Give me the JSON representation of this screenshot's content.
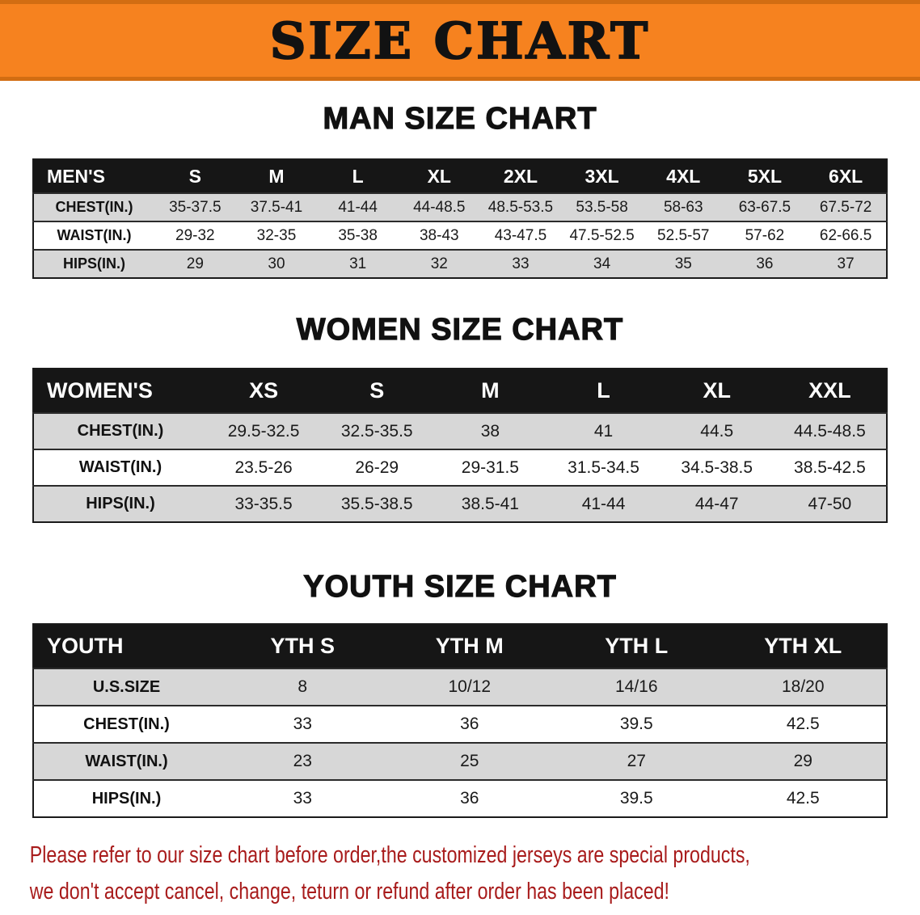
{
  "banner": {
    "title": "SIZE CHART"
  },
  "men": {
    "heading": "MAN SIZE CHART",
    "columns": [
      "MEN'S",
      "S",
      "M",
      "L",
      "XL",
      "2XL",
      "3XL",
      "4XL",
      "5XL",
      "6XL"
    ],
    "rows": [
      {
        "label": "CHEST(IN.)",
        "values": [
          "35-37.5",
          "37.5-41",
          "41-44",
          "44-48.5",
          "48.5-53.5",
          "53.5-58",
          "58-63",
          "63-67.5",
          "67.5-72"
        ]
      },
      {
        "label": "WAIST(IN.)",
        "values": [
          "29-32",
          "32-35",
          "35-38",
          "38-43",
          "43-47.5",
          "47.5-52.5",
          "52.5-57",
          "57-62",
          "62-66.5"
        ]
      },
      {
        "label": "HIPS(IN.)",
        "values": [
          "29",
          "30",
          "31",
          "32",
          "33",
          "34",
          "35",
          "36",
          "37"
        ]
      }
    ]
  },
  "women": {
    "heading": "WOMEN SIZE CHART",
    "columns": [
      "WOMEN'S",
      "XS",
      "S",
      "M",
      "L",
      "XL",
      "XXL"
    ],
    "rows": [
      {
        "label": "CHEST(IN.)",
        "values": [
          "29.5-32.5",
          "32.5-35.5",
          "38",
          "41",
          "44.5",
          "44.5-48.5"
        ]
      },
      {
        "label": "WAIST(IN.)",
        "values": [
          "23.5-26",
          "26-29",
          "29-31.5",
          "31.5-34.5",
          "34.5-38.5",
          "38.5-42.5"
        ]
      },
      {
        "label": "HIPS(IN.)",
        "values": [
          "33-35.5",
          "35.5-38.5",
          "38.5-41",
          "41-44",
          "44-47",
          "47-50"
        ]
      }
    ]
  },
  "youth": {
    "heading": "YOUTH SIZE CHART",
    "columns": [
      "YOUTH",
      "YTH S",
      "YTH M",
      "YTH L",
      "YTH XL"
    ],
    "rows": [
      {
        "label": "U.S.SIZE",
        "values": [
          "8",
          "10/12",
          "14/16",
          "18/20"
        ]
      },
      {
        "label": "CHEST(IN.)",
        "values": [
          "33",
          "36",
          "39.5",
          "42.5"
        ]
      },
      {
        "label": "WAIST(IN.)",
        "values": [
          "23",
          "25",
          "27",
          "29"
        ]
      },
      {
        "label": "HIPS(IN.)",
        "values": [
          "33",
          "36",
          "39.5",
          "42.5"
        ]
      }
    ]
  },
  "notice": {
    "line1": "Please refer to our size chart before order,the customized jerseys are special products,",
    "line2": "we don't accept cancel, change, teturn or refund after order has been placed!"
  },
  "colors": {
    "banner_bg": "#f6821f",
    "banner_edge": "#d26d12",
    "table_header_bg": "#161616",
    "table_header_text": "#ffffff",
    "row_shade": "#d7d7d7",
    "heading_text": "#111111",
    "notice_text": "#a81b1b"
  }
}
